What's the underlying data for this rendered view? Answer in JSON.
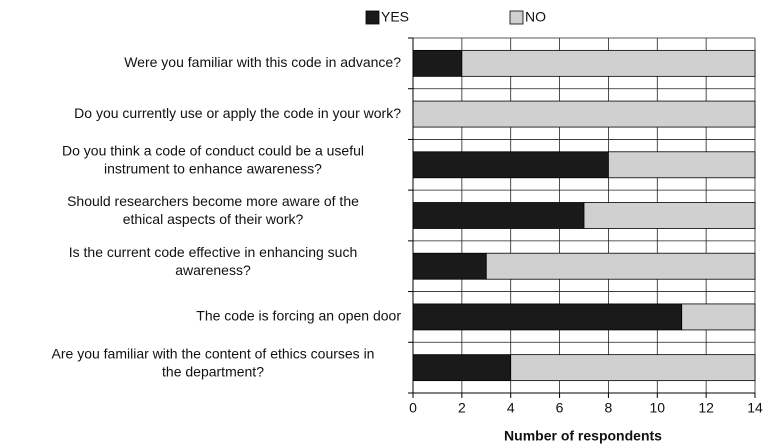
{
  "chart_data": {
    "type": "stacked-bar-horizontal",
    "categories": [
      [
        "Were you familiar with this code in advance?"
      ],
      [
        "Do you currently use or apply the code in your work?"
      ],
      [
        "Do you think a code of conduct could be a useful",
        "instrument to enhance awareness?"
      ],
      [
        "Should researchers become more aware of the",
        "ethical aspects of their work?"
      ],
      [
        "Is the current code effective in enhancing such",
        "awareness?"
      ],
      [
        "The code is forcing an open door"
      ],
      [
        "Are you familiar with the content of ethics courses in",
        "the department?"
      ]
    ],
    "series": [
      {
        "name": "YES",
        "color": "#1a1a1a",
        "values": [
          2,
          0,
          8,
          7,
          3,
          11,
          4
        ]
      },
      {
        "name": "NO",
        "color": "#d0d0d0",
        "values": [
          12,
          14,
          6,
          7,
          11,
          3,
          10
        ]
      }
    ],
    "xlim": [
      0,
      14
    ],
    "xticks": [
      0,
      2,
      4,
      6,
      8,
      10,
      12,
      14
    ],
    "xlabel": "Number of respondents",
    "grid": true,
    "legend": "top"
  }
}
